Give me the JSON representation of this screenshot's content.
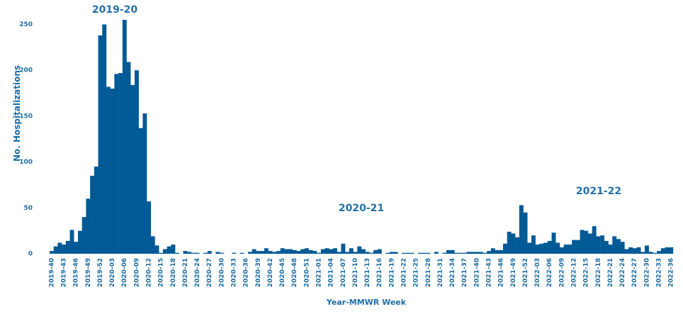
{
  "chart_data": {
    "type": "bar",
    "xlabel": "Year-MMWR Week",
    "ylabel": "No. Hospitalizations",
    "annotations": [
      "2019-20",
      "2020-21",
      "2021-22"
    ],
    "color": "#005a96",
    "ylim": [
      0,
      255
    ],
    "yticks": [
      0,
      50,
      100,
      150,
      200,
      250
    ],
    "grid": false,
    "categories": [
      "2019-40",
      null,
      null,
      "2019-43",
      null,
      null,
      "2019-46",
      null,
      null,
      "2019-49",
      null,
      null,
      "2019-52",
      null,
      null,
      "2020-03",
      null,
      null,
      "2020-06",
      null,
      null,
      "2020-09",
      null,
      null,
      "2020-12",
      null,
      null,
      "2020-15",
      null,
      null,
      "2020-18",
      null,
      null,
      "2020-21",
      null,
      null,
      "2020-24",
      null,
      null,
      "2020-27",
      null,
      null,
      "2020-30",
      null,
      null,
      "2020-33",
      null,
      null,
      "2020-36",
      null,
      null,
      "2020-39",
      null,
      null,
      "2020-42",
      null,
      null,
      "2020-45",
      null,
      null,
      "2020-48",
      null,
      null,
      "2020-51",
      null,
      null,
      "2021-01",
      null,
      null,
      "2021-04",
      null,
      null,
      "2021-07",
      null,
      null,
      "2021-10",
      null,
      null,
      "2021-13",
      null,
      null,
      "2021-16",
      null,
      null,
      "2021-19",
      null,
      null,
      "2021-22",
      null,
      null,
      "2021-25",
      null,
      null,
      "2021-28",
      null,
      null,
      "2021-31",
      null,
      null,
      "2021-34",
      null,
      null,
      "2021-37",
      null,
      null,
      "2021-40",
      null,
      null,
      "2021-43",
      null,
      null,
      "2021-46",
      null,
      null,
      "2021-49",
      null,
      null,
      "2021-52",
      null,
      null,
      "2022-03",
      null,
      null,
      "2022-06",
      null,
      null,
      "2022-09",
      null,
      null,
      "2022-12",
      null,
      null,
      "2022-15",
      null,
      null,
      "2022-18",
      null,
      null,
      "2022-21",
      null,
      null,
      "2022-24",
      null,
      null,
      "2022-27",
      null,
      null,
      "2022-30",
      null,
      null,
      "2022-33",
      null,
      null,
      "2022-36"
    ],
    "values": [
      3,
      8,
      12,
      10,
      14,
      26,
      13,
      25,
      40,
      60,
      85,
      95,
      238,
      250,
      182,
      180,
      196,
      197,
      255,
      209,
      184,
      200,
      137,
      153,
      57,
      19,
      9,
      1,
      5,
      8,
      10,
      1,
      0,
      3,
      2,
      1,
      1,
      0,
      1,
      3,
      0,
      2,
      1,
      0,
      0,
      1,
      0,
      1,
      0,
      2,
      5,
      3,
      3,
      6,
      3,
      2,
      3,
      6,
      5,
      5,
      4,
      3,
      5,
      6,
      4,
      3,
      1,
      5,
      6,
      5,
      6,
      2,
      11,
      2,
      6,
      2,
      8,
      5,
      2,
      1,
      4,
      5,
      0,
      1,
      2,
      2,
      0,
      1,
      1,
      1,
      0,
      1,
      1,
      1,
      0,
      2,
      0,
      1,
      4,
      4,
      1,
      1,
      1,
      2,
      2,
      2,
      2,
      1,
      3,
      6,
      4,
      4,
      11,
      24,
      22,
      18,
      53,
      45,
      12,
      20,
      10,
      11,
      12,
      14,
      23,
      12,
      7,
      10,
      10,
      15,
      15,
      26,
      25,
      22,
      30,
      19,
      20,
      14,
      10,
      19,
      16,
      13,
      5,
      7,
      6,
      7,
      2,
      9,
      2,
      1,
      3,
      6,
      7,
      7
    ]
  }
}
